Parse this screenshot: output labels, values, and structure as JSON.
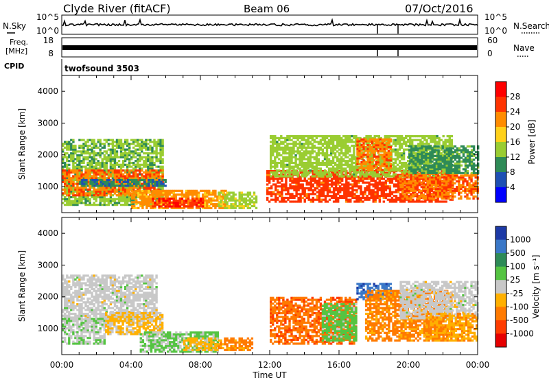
{
  "header": {
    "station": "Clyde River (fitACF)",
    "beam": "Beam 06",
    "date": "07/Oct/2016"
  },
  "status_panels": {
    "nsky_label": "N.Sky",
    "nsky_ticks": [
      "10^5",
      "10^0"
    ],
    "nsearch_label": "N.Search",
    "nsearch_ticks": [
      "10^5",
      "10^0"
    ],
    "freq_label": "Freq.",
    "freq_unit": "[MHz]",
    "freq_ticks": [
      "18",
      "8"
    ],
    "nave_label": "Nave",
    "nave_ticks": [
      "60",
      "0"
    ],
    "cpid_label": "CPID",
    "cpid_value": "twofsound 3503"
  },
  "axes": {
    "xlabel": "Time UT",
    "ylabel": "Slant Range [km]",
    "x_ticks": [
      "00:00",
      "04:00",
      "08:00",
      "12:00",
      "16:00",
      "20:00",
      "00:00"
    ]
  },
  "power_colorbar": {
    "label": "Power [dB]",
    "ticks": [
      "28",
      "24",
      "20",
      "16",
      "12",
      "8",
      "4"
    ],
    "colors": [
      "#ff0000",
      "#ff3300",
      "#ff8c00",
      "#ffd11a",
      "#9acd32",
      "#2e8b57",
      "#1e50b4",
      "#0000ff"
    ]
  },
  "velocity_colorbar": {
    "label": "Velocity [m s⁻¹]",
    "ticks": [
      "1000",
      "500",
      "100",
      "25",
      "-25",
      "-100",
      "-500",
      "-1000"
    ],
    "colors": [
      "#1d3aa6",
      "#3a78c8",
      "#2e8b57",
      "#55c442",
      "#c8c8c8",
      "#ffb000",
      "#ff7a00",
      "#ff3c00",
      "#e60000"
    ]
  },
  "chart_data": [
    {
      "type": "heatmap",
      "panel": "power",
      "x_unit": "hours UT",
      "y_unit": "km",
      "xlim": [
        0,
        24
      ],
      "ylim": [
        180,
        4500
      ],
      "y_ticks": [
        1000,
        2000,
        3000,
        4000
      ],
      "colorbar_range": [
        0,
        30
      ],
      "regions": [
        {
          "x": [
            0.0,
            5.8
          ],
          "y": [
            400,
            2500
          ],
          "value": 12
        },
        {
          "x": [
            0.0,
            5.8
          ],
          "y": [
            700,
            1500
          ],
          "value": 22
        },
        {
          "x": [
            1.0,
            6.0
          ],
          "y": [
            1000,
            1200
          ],
          "value": 8
        },
        {
          "x": [
            4.0,
            9.5
          ],
          "y": [
            300,
            900
          ],
          "value": 20
        },
        {
          "x": [
            5.2,
            8.2
          ],
          "y": [
            350,
            650
          ],
          "value": 26
        },
        {
          "x": [
            9.0,
            11.2
          ],
          "y": [
            300,
            800
          ],
          "value": 14
        },
        {
          "x": [
            11.8,
            22.5
          ],
          "y": [
            500,
            1500
          ],
          "value": 24
        },
        {
          "x": [
            12.0,
            22.5
          ],
          "y": [
            1300,
            2600
          ],
          "value": 13
        },
        {
          "x": [
            17.0,
            19.0
          ],
          "y": [
            1500,
            2500
          ],
          "value": 22
        },
        {
          "x": [
            19.5,
            24.0
          ],
          "y": [
            600,
            1400
          ],
          "value": 22
        },
        {
          "x": [
            20.0,
            24.0
          ],
          "y": [
            1400,
            2300
          ],
          "value": 10
        }
      ]
    },
    {
      "type": "heatmap",
      "panel": "velocity",
      "x_unit": "hours UT",
      "y_unit": "km",
      "xlim": [
        0,
        24
      ],
      "ylim": [
        180,
        4500
      ],
      "y_ticks": [
        1000,
        2000,
        3000,
        4000
      ],
      "colorbar_range": [
        -1000,
        1000
      ],
      "regions": [
        {
          "x": [
            0.0,
            5.5
          ],
          "y": [
            1200,
            2700
          ],
          "value": 0
        },
        {
          "x": [
            0.0,
            2.5
          ],
          "y": [
            500,
            1300
          ],
          "value": 80
        },
        {
          "x": [
            2.5,
            5.8
          ],
          "y": [
            800,
            1500
          ],
          "value": -150
        },
        {
          "x": [
            4.5,
            9.0
          ],
          "y": [
            250,
            900
          ],
          "value": 150
        },
        {
          "x": [
            7.0,
            9.0
          ],
          "y": [
            300,
            700
          ],
          "value": -200
        },
        {
          "x": [
            9.0,
            11.0
          ],
          "y": [
            300,
            700
          ],
          "value": -400
        },
        {
          "x": [
            12.0,
            17.0
          ],
          "y": [
            500,
            2000
          ],
          "value": -500
        },
        {
          "x": [
            15.0,
            17.0
          ],
          "y": [
            600,
            1800
          ],
          "value": 200
        },
        {
          "x": [
            17.0,
            19.0
          ],
          "y": [
            1900,
            2400
          ],
          "value": 700
        },
        {
          "x": [
            17.5,
            22.5
          ],
          "y": [
            600,
            2200
          ],
          "value": -400
        },
        {
          "x": [
            19.5,
            24.0
          ],
          "y": [
            1300,
            2500
          ],
          "value": 0
        },
        {
          "x": [
            21.0,
            24.0
          ],
          "y": [
            600,
            1500
          ],
          "value": -300
        }
      ]
    }
  ]
}
